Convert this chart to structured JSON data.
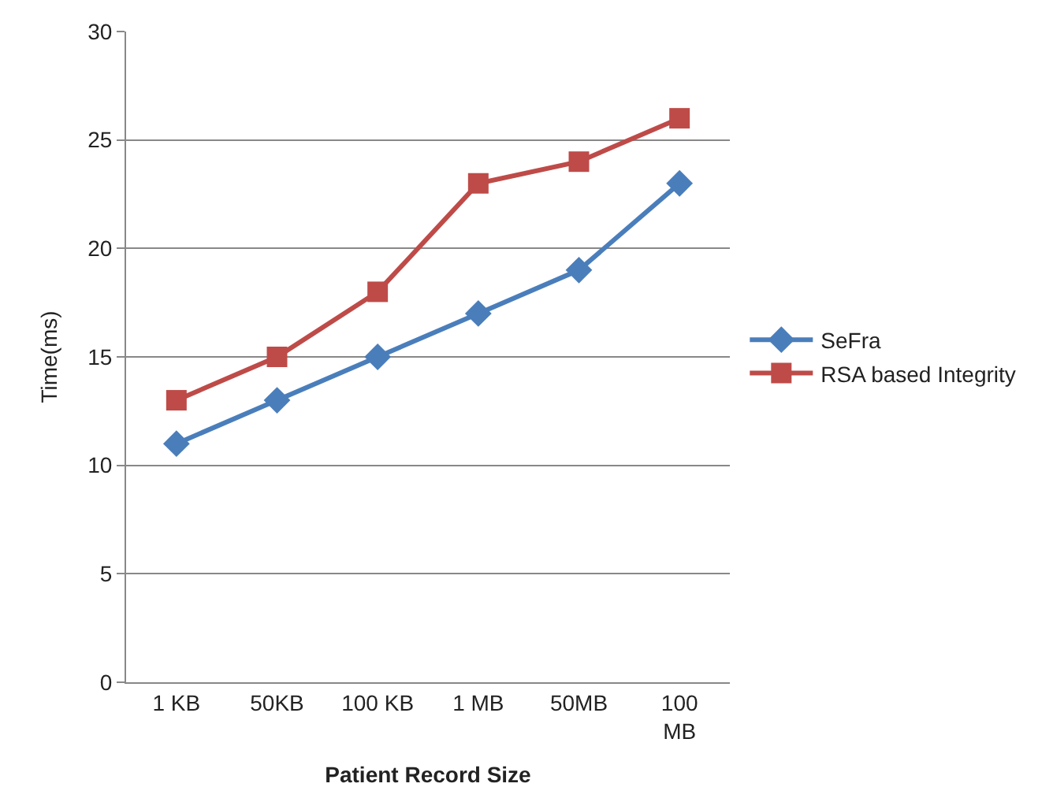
{
  "chart_data": {
    "type": "line",
    "xlabel": "Patient Record Size",
    "ylabel": "Time(ms)",
    "categories": [
      "1 KB",
      "50KB",
      "100 KB",
      "1 MB",
      "50MB",
      "100 MB"
    ],
    "series": [
      {
        "name": "SeFra",
        "color": "#4a7ebb",
        "marker": "diamond",
        "values": [
          11,
          13,
          15,
          17,
          19,
          23
        ]
      },
      {
        "name": "RSA based Integrity",
        "color": "#be4b48",
        "marker": "square",
        "values": [
          13,
          15,
          18,
          23,
          24,
          26
        ]
      }
    ],
    "ylim": [
      0,
      30
    ],
    "yticks": [
      0,
      5,
      10,
      15,
      20,
      25,
      30
    ],
    "grid": "y",
    "legend": "right",
    "line_style": "solid"
  }
}
